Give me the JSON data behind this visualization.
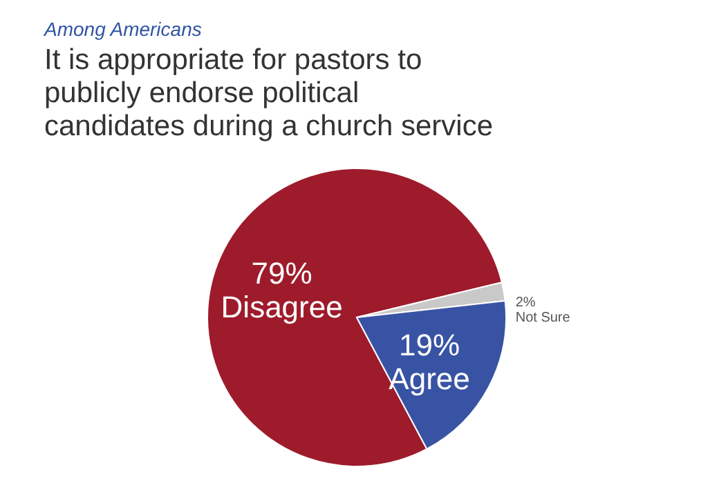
{
  "chart_data": {
    "type": "pie",
    "subtitle": "Among Americans",
    "title": "It is appropriate for pastors to publicly endorse political candidates during a church service",
    "categories": [
      "Disagree",
      "Not Sure",
      "Agree"
    ],
    "values": [
      79,
      2,
      19
    ],
    "colors": [
      "#9e1b2b",
      "#c9c9c9",
      "#3953a4"
    ],
    "value_labels": [
      "79%",
      "2%",
      "19%"
    ]
  }
}
